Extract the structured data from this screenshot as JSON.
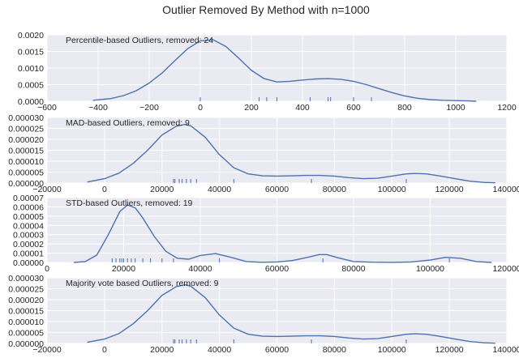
{
  "figure": {
    "title": "Outlier Removed By Method with n=1000"
  },
  "style": {
    "panel_bg": "#EAEAF2",
    "grid": "#FFFFFF",
    "line": "#4C72B0",
    "rug": "#4C72B0"
  },
  "chart_data": [
    {
      "type": "line",
      "title": "Percentile-based Outliers, removed: 24",
      "xlim": [
        -600,
        1200
      ],
      "ylim": [
        0,
        0.002
      ],
      "xticks": [
        -600,
        -400,
        -200,
        0,
        200,
        400,
        600,
        800,
        1000,
        1200
      ],
      "xtick_labels": [
        "−600",
        "−400",
        "−200",
        "0",
        "200",
        "400",
        "600",
        "800",
        "1000",
        "1200"
      ],
      "yticks": [
        0,
        0.0005,
        0.001,
        0.0015,
        0.002
      ],
      "ytick_labels": [
        "0.0000",
        "0.0005",
        "0.0010",
        "0.0015",
        "0.0020"
      ],
      "series": [
        {
          "x": [
            -420,
            -350,
            -300,
            -250,
            -200,
            -150,
            -100,
            -50,
            0,
            50,
            100,
            150,
            200,
            250,
            300,
            350,
            400,
            450,
            500,
            550,
            600,
            650,
            700,
            750,
            800,
            850,
            900,
            950,
            1000,
            1050,
            1080
          ],
          "y": [
            3e-05,
            8e-05,
            0.00017,
            0.00032,
            0.00055,
            0.00085,
            0.00122,
            0.00158,
            0.00182,
            0.00185,
            0.00165,
            0.0013,
            0.00093,
            0.00068,
            0.00058,
            0.0006,
            0.00064,
            0.00067,
            0.00068,
            0.00066,
            0.0006,
            0.0005,
            0.00038,
            0.00026,
            0.00016,
            9e-05,
            5e-05,
            3e-05,
            2e-05,
            1e-05,
            0.0
          ]
        }
      ],
      "rug": [
        0,
        230,
        260,
        300,
        430,
        500,
        510,
        600,
        670
      ]
    },
    {
      "type": "line",
      "title": "MAD-based Outliers, removed: 9",
      "xlim": [
        -20000,
        140000
      ],
      "ylim": [
        0,
        3e-05
      ],
      "xticks": [
        -20000,
        0,
        20000,
        40000,
        60000,
        80000,
        100000,
        120000,
        140000
      ],
      "xtick_labels": [
        "−20000",
        "0",
        "20000",
        "40000",
        "60000",
        "80000",
        "100000",
        "120000",
        "140000"
      ],
      "yticks": [
        0,
        5e-06,
        1e-05,
        1.5e-05,
        2e-05,
        2.5e-05,
        3e-05
      ],
      "ytick_labels": [
        "0.000000",
        "0.000005",
        "0.000010",
        "0.000015",
        "0.000020",
        "0.000025",
        "0.000030"
      ],
      "series": [
        {
          "x": [
            -6000,
            0,
            5000,
            10000,
            15000,
            20000,
            25000,
            28000,
            30000,
            35000,
            40000,
            45000,
            50000,
            55000,
            60000,
            65000,
            70000,
            75000,
            80000,
            85000,
            90000,
            95000,
            100000,
            105000,
            108000,
            112000,
            117000,
            122000,
            127000,
            132000,
            136000
          ],
          "y": [
            5e-07,
            2e-06,
            4.5e-06,
            9e-06,
            1.5e-05,
            2.2e-05,
            2.6e-05,
            2.68e-05,
            2.62e-05,
            2.1e-05,
            1.3e-05,
            7e-06,
            4.2e-06,
            3.3e-06,
            3.2e-06,
            3.3e-06,
            3.5e-06,
            3.5e-06,
            3.2e-06,
            2.5e-06,
            2e-06,
            2.2e-06,
            3.2e-06,
            4.2e-06,
            4.4e-06,
            4.2e-06,
            3.2e-06,
            2e-06,
            9e-07,
            3e-07,
            1e-07
          ]
        }
      ],
      "rug": [
        24000,
        24500,
        26000,
        27000,
        28500,
        30000,
        32000,
        45000,
        72000,
        105000
      ]
    },
    {
      "type": "line",
      "title": "STD-based Outliers, removed: 19",
      "xlim": [
        0,
        120000
      ],
      "ylim": [
        0,
        7e-05
      ],
      "xticks": [
        0,
        20000,
        40000,
        60000,
        80000,
        100000,
        120000
      ],
      "xtick_labels": [
        "0",
        "20000",
        "40000",
        "60000",
        "80000",
        "100000",
        "120000"
      ],
      "yticks": [
        0,
        1e-05,
        2e-05,
        3e-05,
        4e-05,
        5e-05,
        6e-05,
        7e-05
      ],
      "ytick_labels": [
        "0.00000",
        "0.00001",
        "0.00002",
        "0.00003",
        "0.00004",
        "0.00005",
        "0.00006",
        "0.00007"
      ],
      "series": [
        {
          "x": [
            7000,
            10000,
            13000,
            16000,
            19000,
            21000,
            23000,
            25000,
            28000,
            31000,
            34000,
            37000,
            40000,
            44000,
            48000,
            52000,
            56000,
            60000,
            64000,
            68000,
            71000,
            73000,
            76000,
            80000,
            85000,
            90000,
            95000,
            100000,
            104000,
            108000,
            112000,
            116000
          ],
          "y": [
            0.0,
            1e-06,
            8e-06,
            3e-05,
            5.5e-05,
            6.2e-05,
            5.9e-05,
            4.8e-05,
            2.8e-05,
            1.2e-05,
            4.5e-06,
            3.5e-06,
            7.5e-06,
            9.5e-06,
            5.5e-06,
            1e-06,
            2e-07,
            5e-07,
            2e-06,
            5.5e-06,
            8.5e-06,
            8.5e-06,
            5e-06,
            1e-06,
            3e-07,
            1e-07,
            5e-07,
            2.5e-06,
            5.5e-06,
            4.5e-06,
            1e-06,
            0.0
          ]
        }
      ],
      "rug": [
        17000,
        18000,
        19000,
        19500,
        20000,
        21000,
        22000,
        23000,
        25000,
        27000,
        30000,
        33000,
        45000,
        72000,
        105000
      ]
    },
    {
      "type": "line",
      "title": "Majority vote based Outliers, removed: 9",
      "xlim": [
        -20000,
        140000
      ],
      "ylim": [
        0,
        3e-05
      ],
      "xticks": [
        -20000,
        0,
        20000,
        40000,
        60000,
        80000,
        100000,
        120000,
        140000
      ],
      "xtick_labels": [
        "−20000",
        "0",
        "20000",
        "40000",
        "60000",
        "80000",
        "100000",
        "120000",
        "140000"
      ],
      "yticks": [
        0,
        5e-06,
        1e-05,
        1.5e-05,
        2e-05,
        2.5e-05,
        3e-05
      ],
      "ytick_labels": [
        "0.000000",
        "0.000005",
        "0.000010",
        "0.000015",
        "0.000020",
        "0.000025",
        "0.000030"
      ],
      "series": [
        {
          "x": [
            -6000,
            0,
            5000,
            10000,
            15000,
            20000,
            25000,
            28000,
            30000,
            35000,
            40000,
            45000,
            50000,
            55000,
            60000,
            65000,
            70000,
            75000,
            80000,
            85000,
            90000,
            95000,
            100000,
            105000,
            108000,
            112000,
            117000,
            122000,
            127000,
            132000,
            136000
          ],
          "y": [
            5e-07,
            2e-06,
            4.5e-06,
            9e-06,
            1.5e-05,
            2.2e-05,
            2.6e-05,
            2.68e-05,
            2.62e-05,
            2.1e-05,
            1.3e-05,
            7e-06,
            4.2e-06,
            3.3e-06,
            3.2e-06,
            3.3e-06,
            3.5e-06,
            3.5e-06,
            3.2e-06,
            2.5e-06,
            2e-06,
            2.2e-06,
            3.2e-06,
            4.2e-06,
            4.4e-06,
            4.2e-06,
            3.2e-06,
            2e-06,
            9e-07,
            3e-07,
            1e-07
          ]
        }
      ],
      "rug": [
        24000,
        24500,
        26000,
        27000,
        28500,
        30000,
        32000,
        45000,
        72000,
        105000
      ]
    }
  ]
}
